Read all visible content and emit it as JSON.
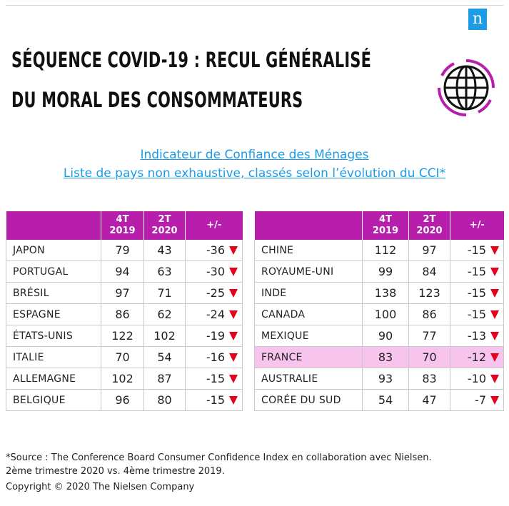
{
  "brand": {
    "logo_letter": "n",
    "accent": "#b71eac",
    "link_color": "#1d9be4",
    "down_color": "#e5001c",
    "highlight_color": "#f7c4ee"
  },
  "title": {
    "line1": "SÉQUENCE COVID-19 : RECUL GÉNÉRALISÉ",
    "line2": "DU MORAL DES CONSOMMATEURS"
  },
  "globe_icon": "globe-icon",
  "subtitle": {
    "line1": "Indicateur de Confiance des Ménages",
    "line2": "Liste de pays non exhaustive, classés selon l’évolution du CCI*"
  },
  "table_headers": {
    "country": "",
    "q4_line1": "4T",
    "q4_line2": "2019",
    "q2_line1": "2T",
    "q2_line2": "2020",
    "diff": "+/-"
  },
  "left_table": [
    {
      "country": "JAPON",
      "q4_2019": "79",
      "q2_2020": "43",
      "diff": "-36"
    },
    {
      "country": "PORTUGAL",
      "q4_2019": "94",
      "q2_2020": "63",
      "diff": "-30"
    },
    {
      "country": "BRÉSIL",
      "q4_2019": "97",
      "q2_2020": "71",
      "diff": "-25"
    },
    {
      "country": "ESPAGNE",
      "q4_2019": "86",
      "q2_2020": "62",
      "diff": "-24"
    },
    {
      "country": "ÉTATS-UNIS",
      "q4_2019": "122",
      "q2_2020": "102",
      "diff": "-19"
    },
    {
      "country": "ITALIE",
      "q4_2019": "70",
      "q2_2020": "54",
      "diff": "-16"
    },
    {
      "country": "ALLEMAGNE",
      "q4_2019": "102",
      "q2_2020": "87",
      "diff": "-15"
    },
    {
      "country": "BELGIQUE",
      "q4_2019": "96",
      "q2_2020": "80",
      "diff": "-15"
    }
  ],
  "right_table": [
    {
      "country": "CHINE",
      "q4_2019": "112",
      "q2_2020": "97",
      "diff": "-15"
    },
    {
      "country": "ROYAUME-UNI",
      "q4_2019": "99",
      "q2_2020": "84",
      "diff": "-15"
    },
    {
      "country": "INDE",
      "q4_2019": "138",
      "q2_2020": "123",
      "diff": "-15"
    },
    {
      "country": "CANADA",
      "q4_2019": "100",
      "q2_2020": "86",
      "diff": "-15"
    },
    {
      "country": "MEXIQUE",
      "q4_2019": "90",
      "q2_2020": "77",
      "diff": "-13"
    },
    {
      "country": "FRANCE",
      "q4_2019": "83",
      "q2_2020": "70",
      "diff": "-12",
      "highlight": true
    },
    {
      "country": "AUSTRALIE",
      "q4_2019": "93",
      "q2_2020": "83",
      "diff": "-10"
    },
    {
      "country": "CORÉE DU SUD",
      "q4_2019": "54",
      "q2_2020": "47",
      "diff": "-7"
    }
  ],
  "footnote": {
    "line1": "*Source : The Conference Board Consumer Confidence Index en collaboration avec Nielsen.",
    "line2": "2ème trimestre 2020 vs. 4ème trimestre 2019."
  },
  "copyright": "Copyright © 2020 The Nielsen Company"
}
